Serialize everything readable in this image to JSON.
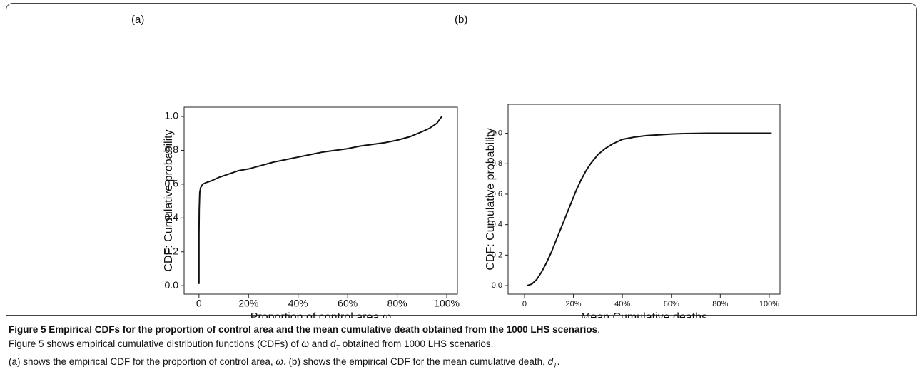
{
  "chart_data": [
    {
      "type": "line",
      "panel_label": "(a)",
      "xlabel": "Proportion of control area ω",
      "ylabel": "CDF: Cumulative probability",
      "x": [
        0,
        0,
        0.1,
        0.3,
        0.7,
        1.5,
        3,
        5,
        8,
        12,
        16,
        20,
        25,
        30,
        35,
        40,
        45,
        50,
        55,
        60,
        65,
        70,
        75,
        80,
        85,
        90,
        93,
        96,
        98
      ],
      "values": [
        0.01,
        0.3,
        0.45,
        0.55,
        0.58,
        0.6,
        0.61,
        0.62,
        0.64,
        0.66,
        0.68,
        0.69,
        0.71,
        0.73,
        0.745,
        0.76,
        0.775,
        0.79,
        0.8,
        0.81,
        0.825,
        0.835,
        0.845,
        0.86,
        0.88,
        0.91,
        0.93,
        0.96,
        1.0
      ],
      "color": "#111111",
      "xlim": [
        -6,
        104.3
      ],
      "ylim": [
        -0.05,
        1.055
      ],
      "xticks": [
        0,
        {
          "value": 20,
          "label": "20%"
        },
        {
          "value": 40,
          "label": "40%"
        },
        {
          "value": 60,
          "label": "60%"
        },
        {
          "value": 80,
          "label": "80%"
        },
        {
          "value": 100,
          "label": "100%"
        }
      ],
      "yticks": [
        {
          "value": 0,
          "label": "0.0"
        },
        0.2,
        0.4,
        0.6,
        0.8,
        {
          "value": 1,
          "label": "1.0"
        }
      ]
    },
    {
      "type": "line",
      "panel_label": "(b)",
      "xlabel": "Mean Cumulative deaths",
      "ylabel": "CDF: Cumulative probability",
      "x": [
        1,
        3,
        5,
        7,
        9,
        11,
        13,
        15,
        17,
        19,
        21,
        23,
        25,
        27,
        30,
        33,
        36,
        40,
        45,
        50,
        55,
        60,
        65,
        75,
        101
      ],
      "values": [
        0,
        0.01,
        0.04,
        0.09,
        0.15,
        0.22,
        0.3,
        0.38,
        0.46,
        0.54,
        0.62,
        0.69,
        0.75,
        0.8,
        0.86,
        0.9,
        0.93,
        0.96,
        0.975,
        0.985,
        0.99,
        0.995,
        0.998,
        1.0,
        1.0
      ],
      "color": "#111111",
      "xlim": [
        -6.7,
        104.4
      ],
      "ylim": [
        -0.056,
        1.19
      ],
      "xticks": [
        0,
        {
          "value": 20,
          "label": "20%"
        },
        {
          "value": 40,
          "label": "40%"
        },
        {
          "value": 60,
          "label": "60%"
        },
        {
          "value": 80,
          "label": "80%"
        },
        {
          "value": 100,
          "label": "100%"
        }
      ],
      "yticks": [
        {
          "value": 0,
          "label": "0.0"
        },
        0.2,
        0.4,
        0.6,
        0.8,
        {
          "value": 1,
          "label": "1.0"
        }
      ]
    }
  ],
  "caption": {
    "title": "Figure 5 Empirical CDFs for the proportion of control area and the mean cumulative death obtained from the 1000 LHS scenarios",
    "title_end": ".",
    "line1": [
      "Figure 5 shows empirical cumulative distribution functions (CDFs) of ",
      "ω",
      " and ",
      "d",
      "T",
      " obtained from 1000 LHS scenarios."
    ],
    "line2": [
      "(a) shows the empirical CDF for the proportion of control area, ",
      "ω",
      ". (b) shows the empirical CDF for the mean cumulative death, ",
      "d",
      "T",
      "."
    ]
  }
}
